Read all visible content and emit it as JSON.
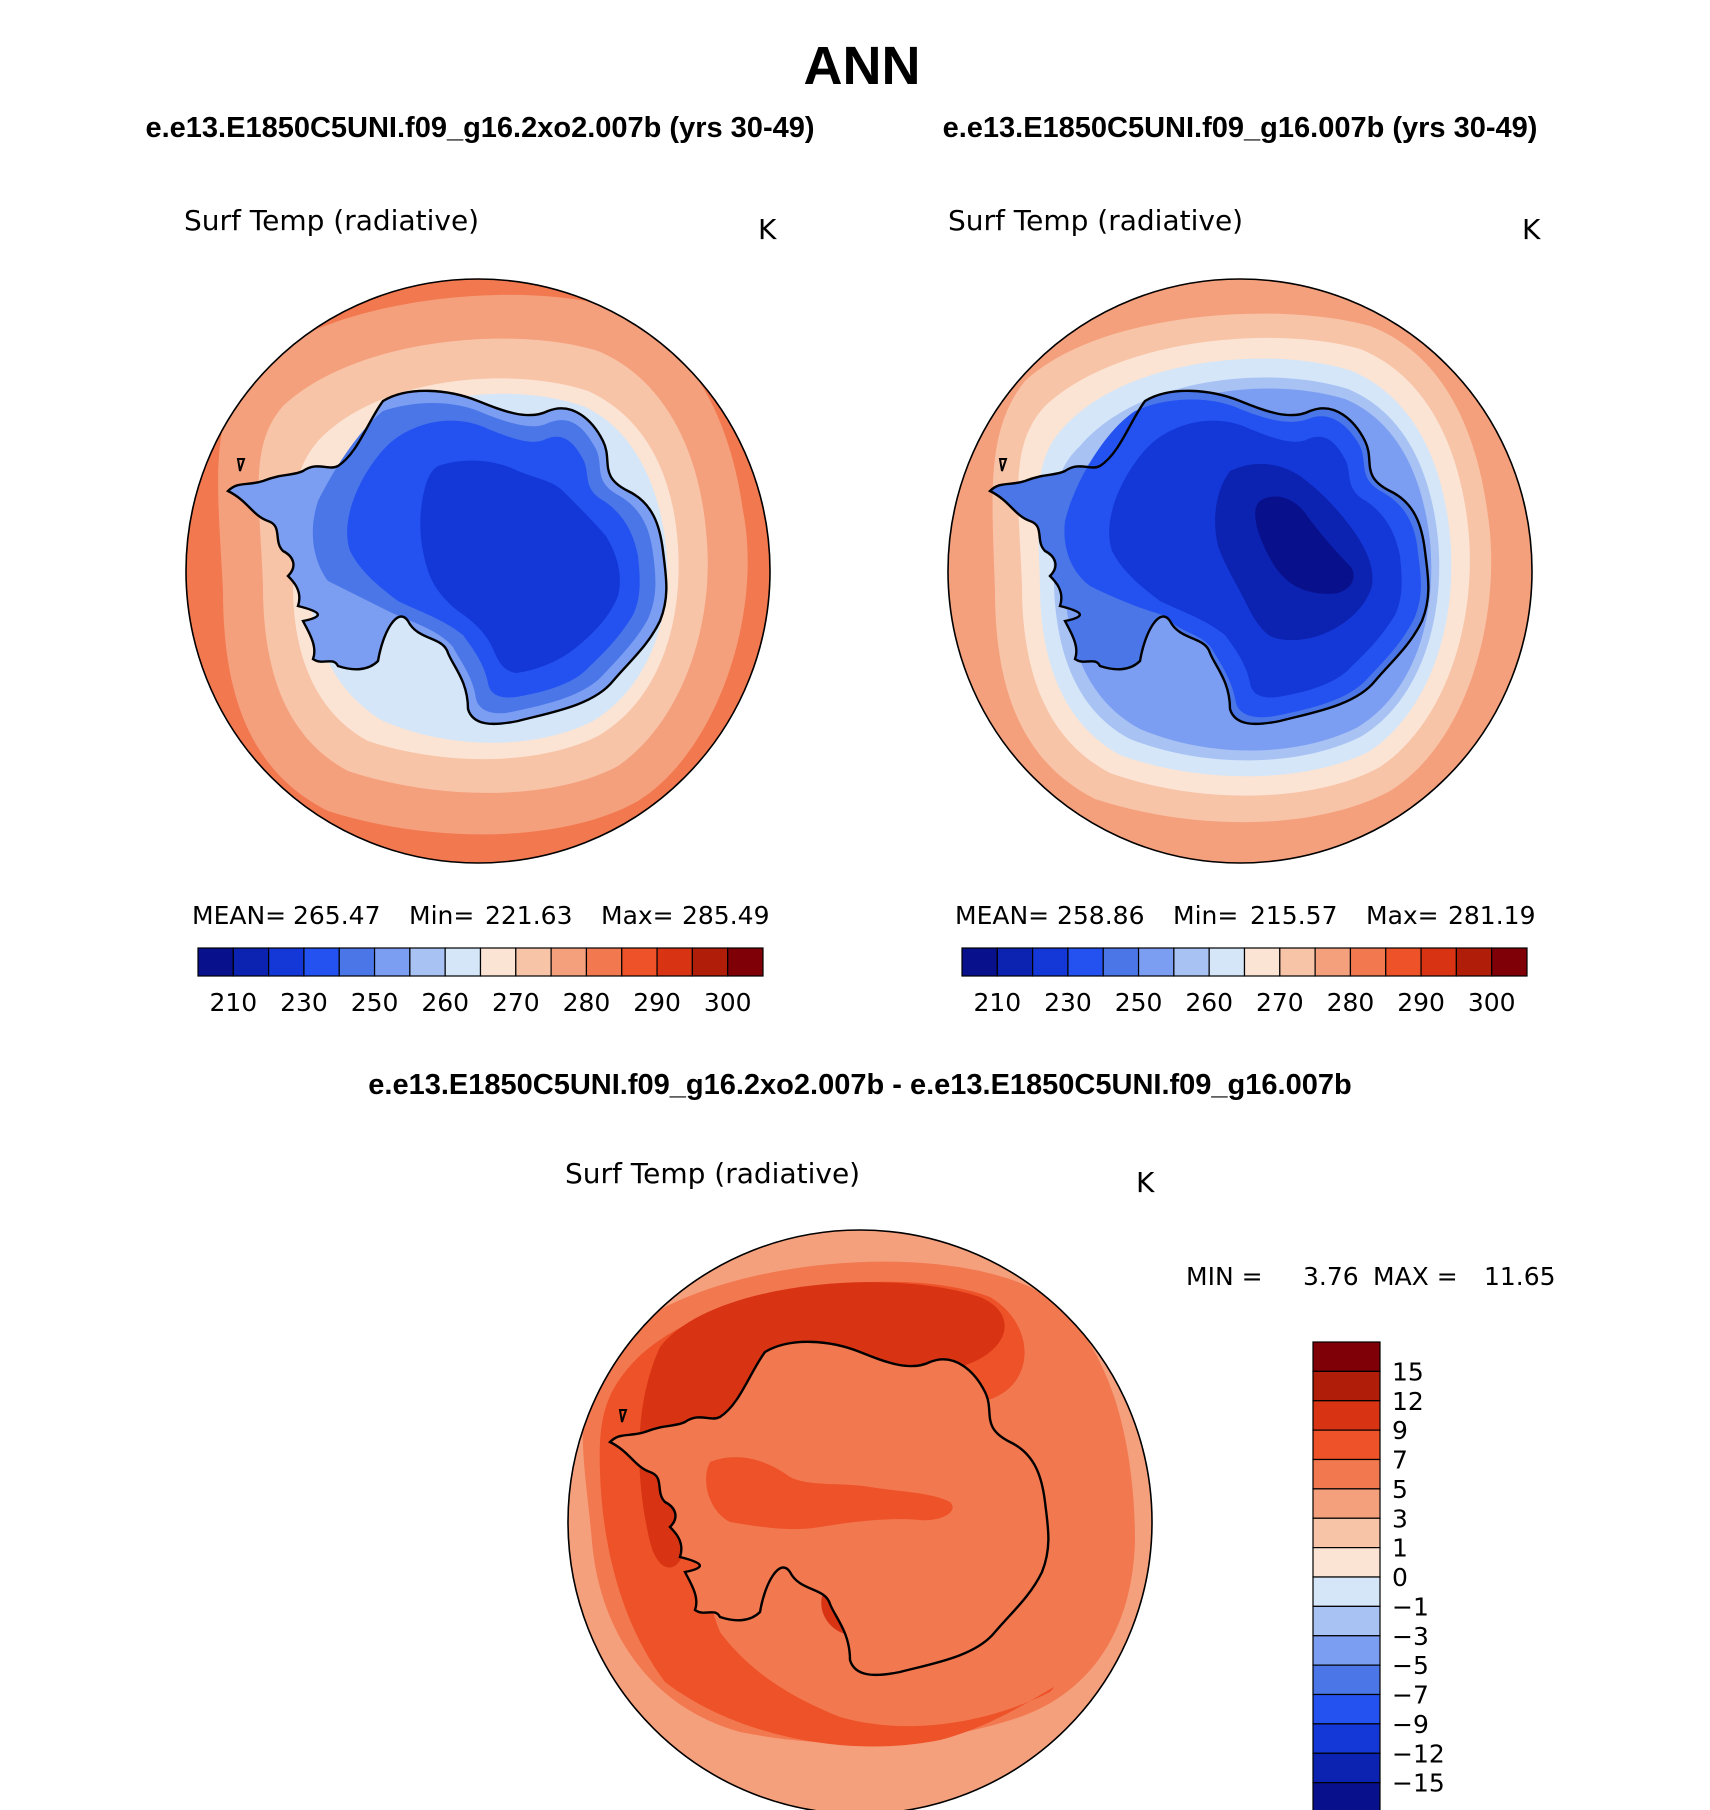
{
  "figure": {
    "title": "ANN",
    "panel1_title": "e.e13.E1850C5UNI.f09_g16.2xo2.007b (yrs 30-49)",
    "panel2_title": "e.e13.E1850C5UNI.f09_g16.007b (yrs 30-49)",
    "diff_title": "e.e13.E1850C5UNI.f09_g16.2xo2.007b - e.e13.E1850C5UNI.f09_g16.007b"
  },
  "chart_data": [
    {
      "type": "heatmap",
      "projection": "south-polar-stereographic",
      "variable": "Surf Temp (radiative)",
      "units": "K",
      "stats": {
        "mean_label": "MEAN=",
        "mean": "265.47",
        "min_label": "Min=",
        "min": "221.63",
        "max_label": "Max=",
        "max": "285.49"
      },
      "colorbar": {
        "orientation": "horizontal",
        "tick_labels": [
          "210",
          "230",
          "250",
          "260",
          "270",
          "280",
          "290",
          "300"
        ],
        "colors": [
          "#08108c",
          "#0c22b0",
          "#1438d8",
          "#2452f0",
          "#4a76e8",
          "#7c9ef2",
          "#a8c2f4",
          "#d4e6f8",
          "#fbe4d4",
          "#f8c4a8",
          "#f5a07c",
          "#f27850",
          "#ee5228",
          "#d83414",
          "#b01e0a",
          "#800008"
        ]
      },
      "rings_outer_to_inner": [
        280,
        275,
        270,
        265,
        260,
        250,
        240,
        230
      ]
    },
    {
      "type": "heatmap",
      "projection": "south-polar-stereographic",
      "variable": "Surf Temp (radiative)",
      "units": "K",
      "stats": {
        "mean_label": "MEAN=",
        "mean": "258.86",
        "min_label": "Min=",
        "min": "215.57",
        "max_label": "Max=",
        "max": "281.19"
      },
      "colorbar": {
        "orientation": "horizontal",
        "tick_labels": [
          "210",
          "230",
          "250",
          "260",
          "270",
          "280",
          "290",
          "300"
        ],
        "colors": [
          "#08108c",
          "#0c22b0",
          "#1438d8",
          "#2452f0",
          "#4a76e8",
          "#7c9ef2",
          "#a8c2f4",
          "#d4e6f8",
          "#fbe4d4",
          "#f8c4a8",
          "#f5a07c",
          "#f27850",
          "#ee5228",
          "#d83414",
          "#b01e0a",
          "#800008"
        ]
      },
      "rings_outer_to_inner": [
        275,
        270,
        265,
        260,
        255,
        250,
        240,
        230,
        220
      ]
    },
    {
      "type": "heatmap",
      "projection": "south-polar-stereographic",
      "variable": "Surf Temp (radiative)",
      "units": "K",
      "stats": {
        "min_label": "MIN =",
        "min": "3.76",
        "max_label": "MAX =",
        "max": "11.65"
      },
      "colorbar": {
        "orientation": "vertical",
        "tick_labels": [
          "15",
          "12",
          "9",
          "7",
          "5",
          "3",
          "1",
          "0",
          "−1",
          "−3",
          "−5",
          "−7",
          "−9",
          "−12",
          "−15"
        ],
        "colors": [
          "#800008",
          "#b01e0a",
          "#d83414",
          "#ee5228",
          "#f27850",
          "#f5a07c",
          "#f8c4a8",
          "#fbe4d4",
          "#d4e6f8",
          "#a8c2f4",
          "#7c9ef2",
          "#4a76e8",
          "#2452f0",
          "#1438d8",
          "#0c22b0",
          "#08108c"
        ]
      },
      "rings_outer_to_inner": [
        4,
        6,
        8,
        10
      ]
    }
  ]
}
